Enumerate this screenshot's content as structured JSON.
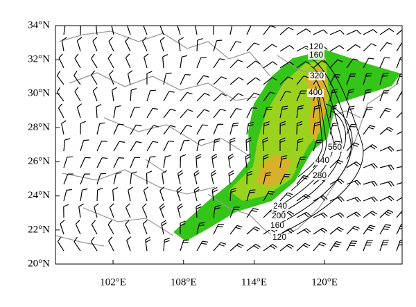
{
  "chart_data": {
    "type": "map",
    "xlim": [
      97.1,
      126.6
    ],
    "ylim": [
      20,
      34
    ],
    "xticks": [
      {
        "value": 102,
        "label": "102°E"
      },
      {
        "value": 108,
        "label": "108°E"
      },
      {
        "value": 114,
        "label": "114°E"
      },
      {
        "value": 120,
        "label": "120°E"
      }
    ],
    "yticks": [
      {
        "value": 20,
        "label": "20°N"
      },
      {
        "value": 22,
        "label": "22°N"
      },
      {
        "value": 24,
        "label": "24°N"
      },
      {
        "value": 26,
        "label": "26°N"
      },
      {
        "value": 28,
        "label": "28°N"
      },
      {
        "value": 30,
        "label": "30°N"
      },
      {
        "value": 32,
        "label": "32°N"
      },
      {
        "value": 34,
        "label": "34°N"
      }
    ],
    "contour_labels": [
      120,
      160,
      320,
      400,
      560,
      440,
      280,
      240,
      200,
      160,
      120
    ]
  }
}
